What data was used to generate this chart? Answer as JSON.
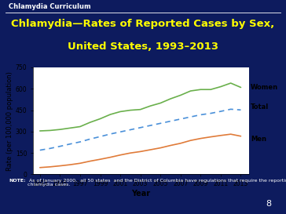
{
  "years": [
    1993,
    1994,
    1995,
    1996,
    1997,
    1998,
    1999,
    2000,
    2001,
    2002,
    2003,
    2004,
    2005,
    2006,
    2007,
    2008,
    2009,
    2010,
    2011,
    2012,
    2013
  ],
  "women": [
    305,
    308,
    315,
    325,
    335,
    365,
    390,
    420,
    440,
    450,
    455,
    480,
    500,
    530,
    555,
    585,
    595,
    595,
    615,
    640,
    610
  ],
  "total": [
    170,
    182,
    197,
    213,
    228,
    248,
    265,
    283,
    298,
    313,
    328,
    343,
    358,
    373,
    388,
    403,
    418,
    428,
    442,
    457,
    452
  ],
  "men": [
    48,
    53,
    60,
    68,
    78,
    93,
    106,
    120,
    136,
    150,
    160,
    173,
    186,
    203,
    218,
    238,
    252,
    263,
    273,
    282,
    268
  ],
  "women_color": "#6ab04c",
  "total_color": "#4a90d9",
  "men_color": "#e07b39",
  "bg_color": "#0d1b5e",
  "chart_bg": "#ffffff",
  "title_line1": "Chlamydia—Rates of Reported Cases by Sex,",
  "title_line2": "United States, 1993–2013",
  "title_color": "#ffff00",
  "header_text": "Chlamydia Curriculum",
  "ylabel": "Rate (per 100,000 population)",
  "xlabel": "Year",
  "ylim": [
    0,
    750
  ],
  "yticks": [
    0,
    150,
    300,
    450,
    600,
    750
  ],
  "xticks": [
    1993,
    1995,
    1997,
    1999,
    2001,
    2003,
    2005,
    2007,
    2009,
    2011,
    2013
  ],
  "note_bold": "NOTE:",
  "note_rest": " As of January 2000,  all 50 states  and the District of Columbia have regulations that require the reporting of\nchlamydia cases.",
  "page_number": "8",
  "header_fontsize": 6.0,
  "title_fontsize": 9.5,
  "tick_fontsize": 5.5,
  "label_fontsize": 6.0,
  "xlabel_fontsize": 7.0,
  "note_fontsize": 4.5
}
